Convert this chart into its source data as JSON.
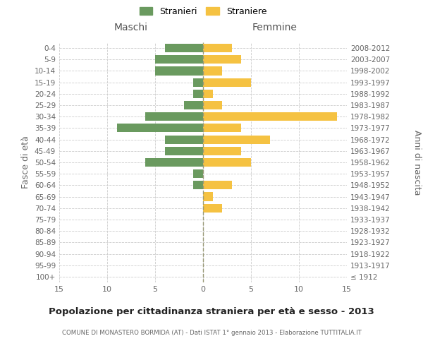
{
  "age_groups": [
    "100+",
    "95-99",
    "90-94",
    "85-89",
    "80-84",
    "75-79",
    "70-74",
    "65-69",
    "60-64",
    "55-59",
    "50-54",
    "45-49",
    "40-44",
    "35-39",
    "30-34",
    "25-29",
    "20-24",
    "15-19",
    "10-14",
    "5-9",
    "0-4"
  ],
  "birth_years": [
    "≤ 1912",
    "1913-1917",
    "1918-1922",
    "1923-1927",
    "1928-1932",
    "1933-1937",
    "1938-1942",
    "1943-1947",
    "1948-1952",
    "1953-1957",
    "1958-1962",
    "1963-1967",
    "1968-1972",
    "1973-1977",
    "1978-1982",
    "1983-1987",
    "1988-1992",
    "1993-1997",
    "1998-2002",
    "2003-2007",
    "2008-2012"
  ],
  "maschi": [
    0,
    0,
    0,
    0,
    0,
    0,
    0,
    0,
    1,
    1,
    6,
    4,
    4,
    9,
    6,
    2,
    1,
    1,
    5,
    5,
    4
  ],
  "femmine": [
    0,
    0,
    0,
    0,
    0,
    0,
    2,
    1,
    3,
    0,
    5,
    4,
    7,
    4,
    14,
    2,
    1,
    5,
    2,
    4,
    3
  ],
  "color_maschi": "#6a9a5f",
  "color_femmine": "#f5c242",
  "title": "Popolazione per cittadinanza straniera per età e sesso - 2013",
  "subtitle": "COMUNE DI MONASTERO BORMIDA (AT) - Dati ISTAT 1° gennaio 2013 - Elaborazione TUTTITALIA.IT",
  "ylabel_left": "Fasce di età",
  "ylabel_right": "Anni di nascita",
  "xlabel_maschi": "Maschi",
  "xlabel_femmine": "Femmine",
  "legend_maschi": "Stranieri",
  "legend_femmine": "Straniere",
  "xlim": 15,
  "background_color": "#ffffff",
  "grid_color": "#cccccc"
}
